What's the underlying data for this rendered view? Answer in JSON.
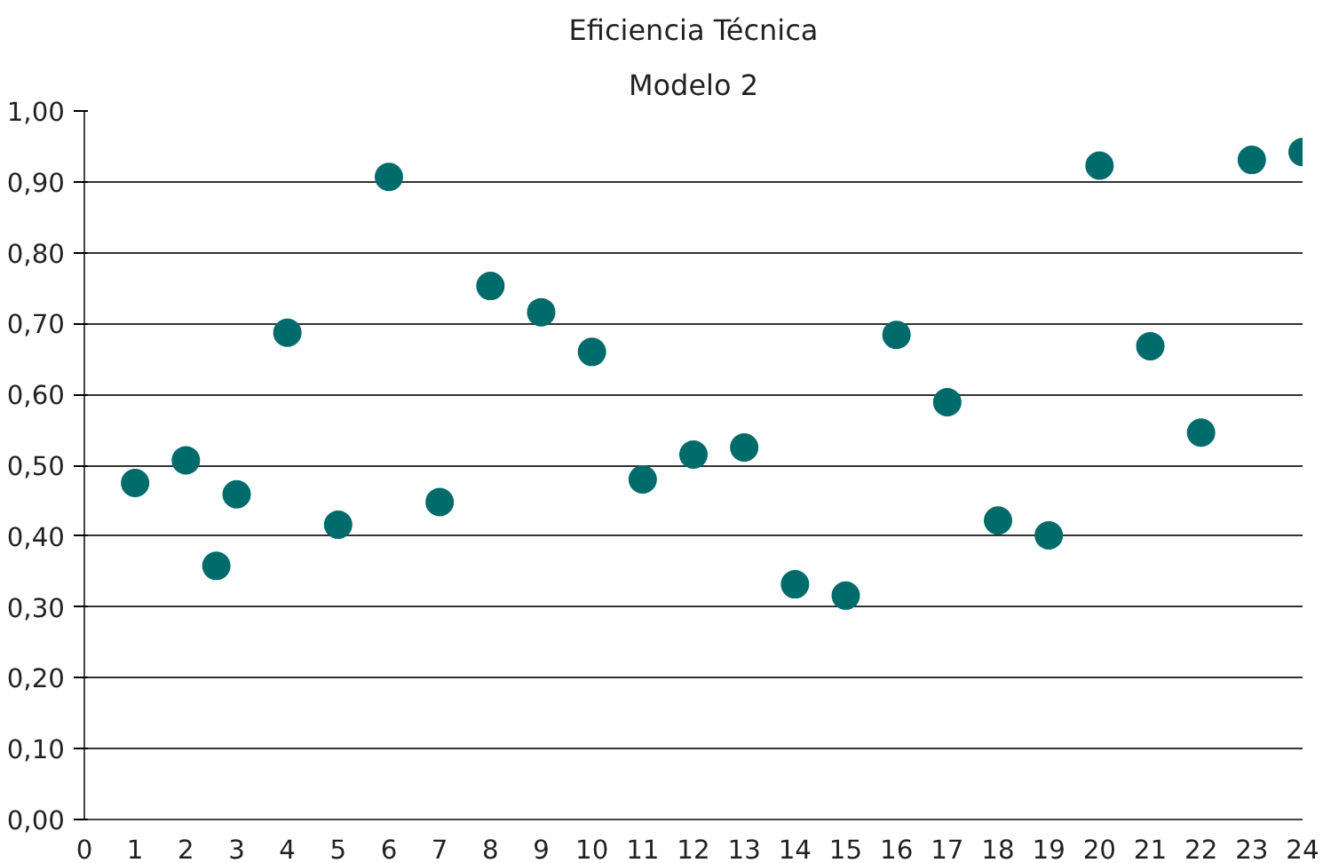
{
  "chart_data": {
    "type": "scatter",
    "title": "Eficiencia Técnica",
    "subtitle": "Modelo 2",
    "x": [
      1,
      2,
      2.6,
      3,
      4,
      5,
      6,
      7,
      8,
      9,
      10,
      11,
      12,
      13,
      14,
      15,
      16,
      17,
      18,
      19,
      20,
      21,
      22,
      23,
      24
    ],
    "series": [
      {
        "color": "#006b6b",
        "values": [
          0.475,
          0.507,
          0.358,
          0.459,
          0.687,
          0.416,
          0.907,
          0.448,
          0.753,
          0.716,
          0.66,
          0.48,
          0.515,
          0.525,
          0.332,
          0.316,
          0.684,
          0.589,
          0.422,
          0.401,
          0.923,
          0.668,
          0.546,
          0.931,
          0.942
        ]
      }
    ],
    "xlim": [
      0,
      24
    ],
    "xticks": [
      0,
      1,
      2,
      3,
      4,
      5,
      6,
      7,
      8,
      9,
      10,
      11,
      12,
      13,
      14,
      15,
      16,
      17,
      18,
      19,
      20,
      21,
      22,
      23,
      24
    ],
    "ylim": [
      0,
      1
    ],
    "yticks": [
      {
        "value": 0,
        "label": "0,00"
      },
      {
        "value": 0.1,
        "label": "0,10"
      },
      {
        "value": 0.2,
        "label": "0,20"
      },
      {
        "value": 0.3,
        "label": "0,30"
      },
      {
        "value": 0.4,
        "label": "0,40"
      },
      {
        "value": 0.5,
        "label": "0,50"
      },
      {
        "value": 0.6,
        "label": "0,60"
      },
      {
        "value": 0.7,
        "label": "0,70"
      },
      {
        "value": 0.8,
        "label": "0,80"
      },
      {
        "value": 0.9,
        "label": "0,90"
      },
      {
        "value": 1,
        "label": "1,00"
      }
    ],
    "grid": "y",
    "marker": "circle"
  }
}
